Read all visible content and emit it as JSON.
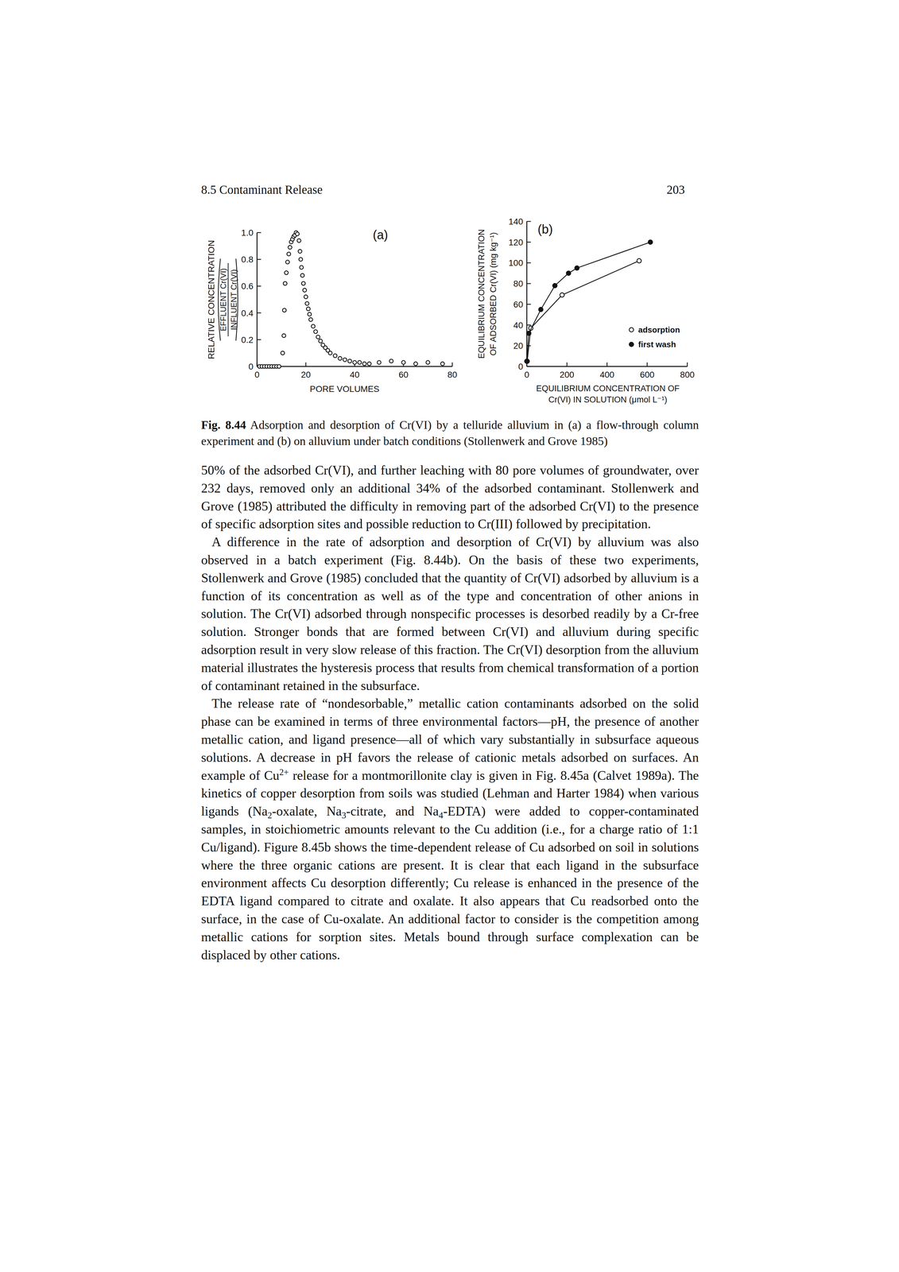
{
  "page": {
    "header_left": "8.5 Contaminant Release",
    "header_right": "203",
    "caption": {
      "label": "Fig. 8.44",
      "text": "Adsorption and desorption of Cr(VI) by a telluride alluvium in (a) a flow-through column experiment and (b) on alluvium under batch conditions (Stollenwerk and Grove 1985)"
    },
    "paragraphs": [
      [
        "50% of the adsorbed Cr(VI), and further leaching with 80 pore volumes of groundwater, over 232 days, removed only an additional 34% of the adsorbed contaminant. Stollenwerk and Grove (1985) attributed the difficulty in removing part of the adsorbed Cr(VI) to the presence of specific adsorption sites and possible reduction to Cr(III) followed by precipitation."
      ],
      [
        "A difference in the rate of adsorption and desorption of Cr(VI) by alluvium was also observed in a batch experiment (Fig. 8.44b). On the basis of these two experiments, Stollenwerk and Grove (1985) concluded that the quantity of Cr(VI) adsorbed by alluvium is a function of its concentration as well as of the type and concentration of other anions in solution. The Cr(VI) adsorbed through nonspecific processes is desorbed readily by a Cr-free solution. Stronger bonds that are formed between Cr(VI) and alluvium during specific adsorption result in very slow release of this fraction. The Cr(VI) desorption from the alluvium material illustrates the hysteresis process that results from chemical transformation of a portion of contaminant retained in the subsurface."
      ],
      [
        "The release rate of “nondesorbable,” metallic cation contaminants adsorbed on the solid phase can be examined in terms of three environmental factors—pH, the presence of another metallic cation, and ligand presence—all of which vary substantially in subsurface aqueous solutions. A decrease in pH favors the release of cationic metals adsorbed on surfaces. An example of Cu",
        {
          "sup": "2+"
        },
        " release for a montmorillonite clay is given in Fig. 8.45a (Calvet 1989a). The kinetics of copper desorption from soils was studied (Lehman and Harter 1984) when various ligands (Na",
        {
          "sub": "2"
        },
        "-oxalate, Na",
        {
          "sub": "3"
        },
        "-citrate, and Na",
        {
          "sub": "4"
        },
        "-EDTA) were added to copper-contaminated samples, in stoichiometric amounts relevant to the Cu addition (i.e., for a charge ratio of 1:1 Cu/ligand). Figure 8.45b shows the time-dependent release of Cu adsorbed on soil in solutions where the three organic cations are present. It is clear that each ligand in the subsurface environment affects Cu desorption differently; Cu release is enhanced in the presence of the EDTA ligand compared to citrate and oxalate. It also appears that Cu readsorbed onto the surface, in the case of Cu-oxalate. An additional factor to consider is the competition among metallic cations for sorption sites. Metals bound through surface complexation can be displaced by other cations."
      ]
    ]
  },
  "chart_data": [
    {
      "type": "scatter",
      "title": "(a)",
      "xlabel": "PORE VOLUMES",
      "ylabel": "RELATIVE CONCENTRATION",
      "ylabel_ratio": {
        "numerator": "EFFLUENT Cr(VI)",
        "denominator": "INFLUENT Cr(VI)"
      },
      "x": [
        1,
        2,
        3,
        4,
        5,
        6,
        7,
        8,
        9,
        10.5,
        11,
        11.2,
        11.5,
        12,
        12.5,
        13,
        13.5,
        14,
        14.5,
        15,
        15.5,
        16,
        16.5,
        17.2,
        17.6,
        17.9,
        18.2,
        18.6,
        19,
        19.5,
        20,
        20.5,
        21,
        21.5,
        22,
        23,
        24,
        25,
        26,
        27,
        28,
        29,
        30,
        32,
        34,
        36,
        38,
        40,
        42,
        44,
        46,
        50,
        55,
        60,
        65,
        70,
        76
      ],
      "values": [
        0,
        0,
        0,
        0,
        0,
        0,
        0,
        0,
        0,
        0.1,
        0.23,
        0.42,
        0.62,
        0.7,
        0.78,
        0.84,
        0.89,
        0.93,
        0.95,
        0.97,
        0.98,
        1.0,
        0.99,
        0.94,
        0.86,
        0.8,
        0.74,
        0.68,
        0.62,
        0.57,
        0.52,
        0.47,
        0.43,
        0.39,
        0.35,
        0.3,
        0.26,
        0.22,
        0.19,
        0.16,
        0.14,
        0.12,
        0.1,
        0.08,
        0.06,
        0.05,
        0.04,
        0.03,
        0.03,
        0.02,
        0.02,
        0.03,
        0.04,
        0.03,
        0.02,
        0.03,
        0.02
      ],
      "xlim": [
        0,
        80
      ],
      "ylim": [
        0,
        1
      ],
      "xticks": [
        0,
        20,
        40,
        60,
        80
      ],
      "yticks": [
        0,
        0.2,
        0.4,
        0.6,
        0.8,
        {
          "value": 1,
          "label": "1.0"
        }
      ],
      "marker": "open-circle",
      "color": "#111111"
    },
    {
      "type": "line",
      "title": "(b)",
      "xlabel": [
        "EQUILIBRIUM CONCENTRATION OF",
        "Cr(VI) IN SOLUTION (μmol L⁻¹)"
      ],
      "ylabel": [
        "EQUILIBRIUM CONCENTRATION",
        "OF ADSORBED Cr(VI) (mg kg⁻¹)"
      ],
      "series": [
        {
          "name": "adsorption",
          "marker": "open-circle",
          "color": "#111111",
          "x": [
            2,
            20,
            176,
            560
          ],
          "values": [
            5,
            37,
            69,
            102
          ]
        },
        {
          "name": "first wash",
          "marker": "filled-circle",
          "color": "#111111",
          "x": [
            0,
            10,
            70,
            140,
            208,
            250,
            616
          ],
          "values": [
            5,
            32,
            55,
            78,
            90,
            95,
            120
          ]
        }
      ],
      "xlim": [
        0,
        800
      ],
      "ylim": [
        0,
        140
      ],
      "xticks": [
        0,
        200,
        400,
        600,
        800
      ],
      "yticks": [
        0,
        20,
        40,
        60,
        80,
        100,
        120,
        140
      ],
      "legend": "lower right"
    }
  ]
}
